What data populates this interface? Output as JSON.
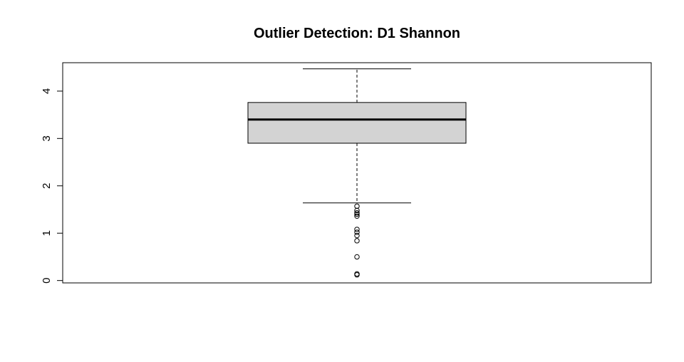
{
  "chart_data": {
    "type": "boxplot",
    "title": "Outlier Detection: D1 Shannon",
    "xlabel": "",
    "ylabel": "",
    "ylim": [
      -0.05,
      4.6
    ],
    "y_ticks": [
      0,
      1,
      2,
      3,
      4
    ],
    "y_tick_labels": [
      "0",
      "1",
      "2",
      "3",
      "4"
    ],
    "grid": false,
    "box": {
      "whisker_low": 1.64,
      "q1": 2.9,
      "median": 3.4,
      "q3": 3.76,
      "whisker_high": 4.47
    },
    "outliers": [
      1.57,
      1.48,
      1.43,
      1.4,
      1.36,
      1.08,
      1.02,
      0.95,
      0.84,
      0.5,
      0.14,
      0.12
    ],
    "colors": {
      "box_fill": "#d3d3d3",
      "stroke": "#000000"
    }
  }
}
